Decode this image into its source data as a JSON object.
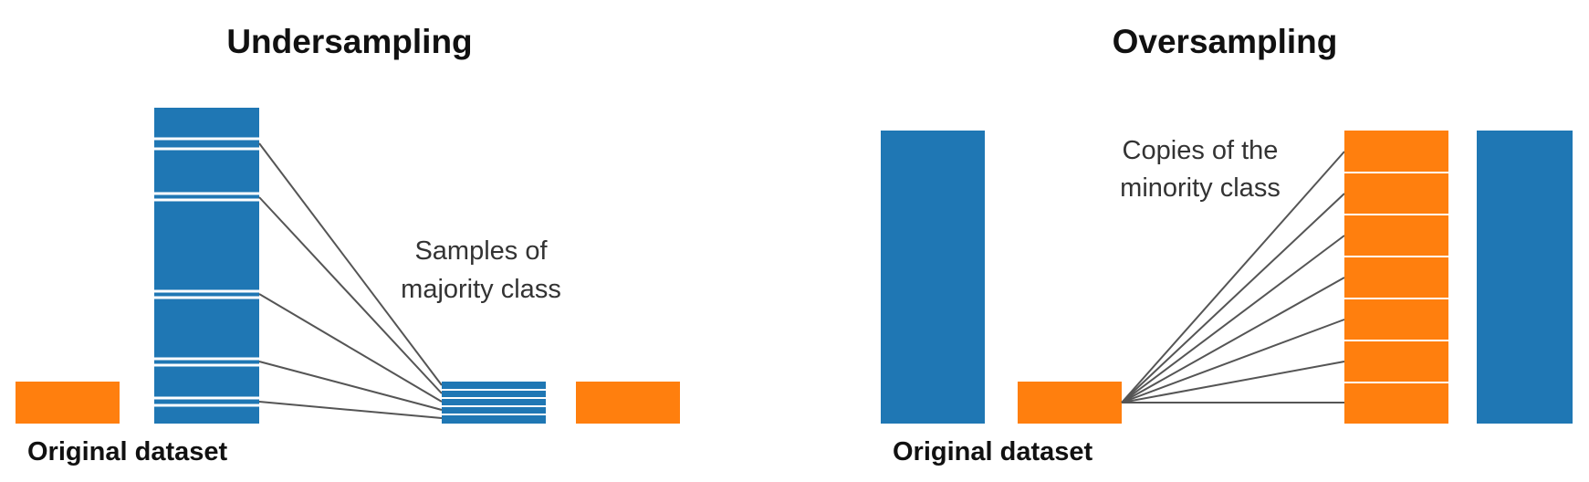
{
  "colors": {
    "majority": "#1f77b4",
    "minority": "#ff7f0e",
    "connector": "#555555",
    "divider": "#ffffff"
  },
  "undersampling": {
    "title": "Undersampling",
    "caption": "Original dataset",
    "annotation": [
      "Samples of",
      "majority class"
    ],
    "sampled_count": 5
  },
  "oversampling": {
    "title": "Oversampling",
    "caption": "Original dataset",
    "annotation": [
      "Copies of the",
      "minority class"
    ],
    "copy_count": 7
  }
}
